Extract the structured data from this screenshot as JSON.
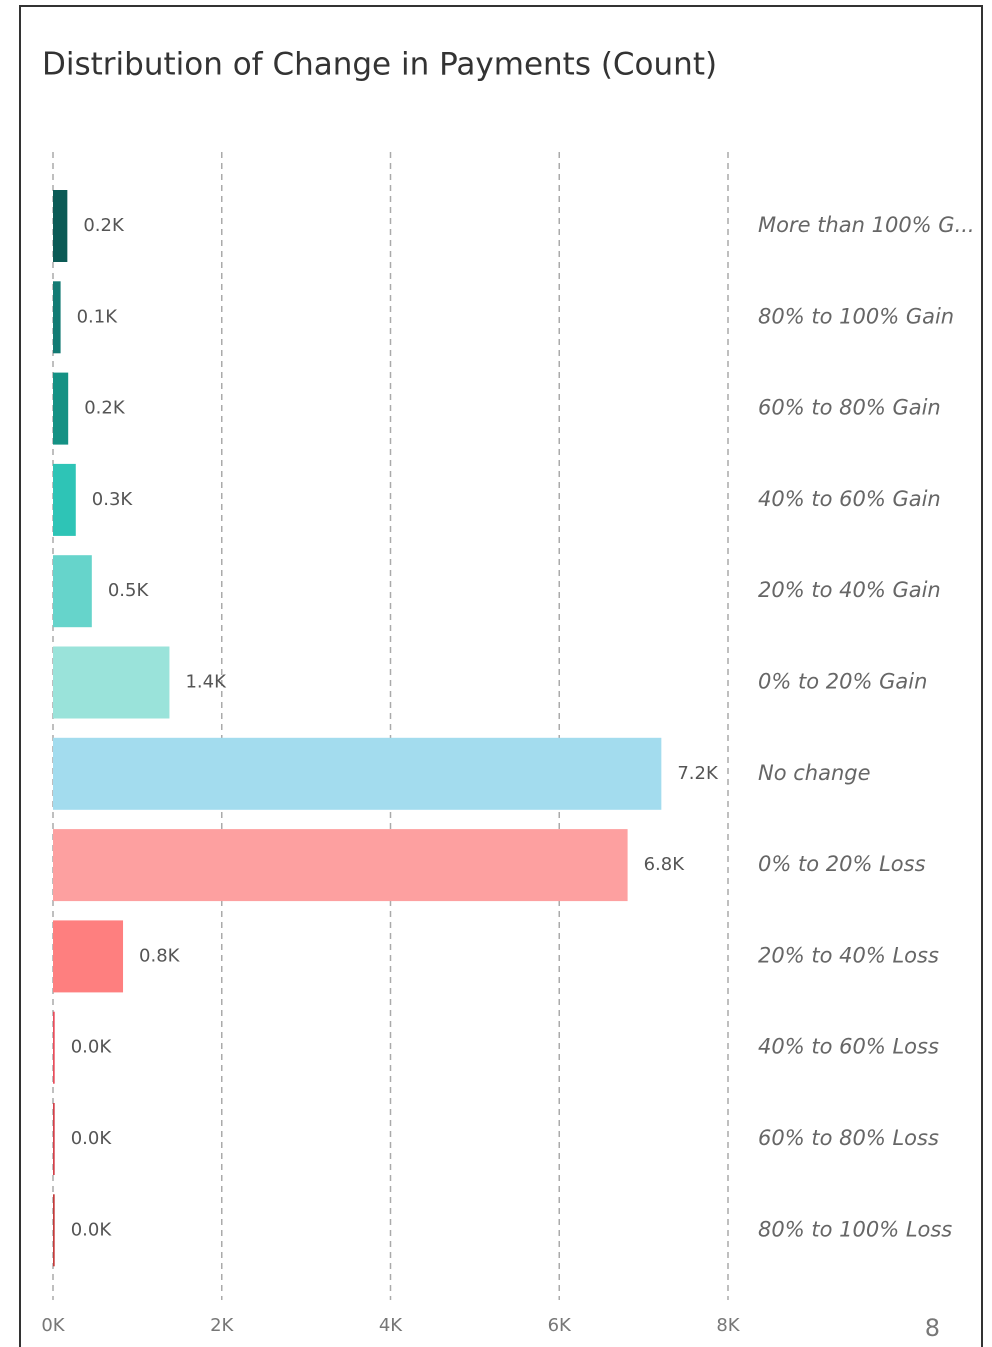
{
  "chart_data": {
    "type": "hbar",
    "title": "Distribution of Change in Payments (Count)",
    "categories": [
      "More than 100% G...",
      "80% to 100% Gain",
      "60% to 80% Gain",
      "40% to 60% Gain",
      "20% to 40% Gain",
      "0% to 20% Gain",
      "No change",
      "0% to 20% Loss",
      "20% to 40% Loss",
      "40% to 60% Loss",
      "60% to 80% Loss",
      "80% to 100% Loss"
    ],
    "values": [
      170,
      90,
      180,
      270,
      460,
      1380,
      7210,
      6810,
      830,
      20,
      20,
      20
    ],
    "value_labels": [
      "0.2K",
      "0.1K",
      "0.2K",
      "0.3K",
      "0.5K",
      "1.4K",
      "7.2K",
      "6.8K",
      "0.8K",
      "0.0K",
      "0.0K",
      "0.0K"
    ],
    "colors": [
      "#0b5a55",
      "#137a73",
      "#159184",
      "#2ec4b6",
      "#66d4cb",
      "#9ae3da",
      "#a3dcee",
      "#fda0a0",
      "#fe7f7f",
      "#e84c5a",
      "#d33f48",
      "#c33a3a"
    ],
    "xlim": [
      0,
      8000
    ],
    "xticks": [
      {
        "value": 0,
        "label": "0K"
      },
      {
        "value": 2000,
        "label": "2K"
      },
      {
        "value": 4000,
        "label": "4K"
      },
      {
        "value": 6000,
        "label": "6K"
      },
      {
        "value": 8000,
        "label": "8K"
      }
    ],
    "grid": true
  },
  "page_number": "8"
}
